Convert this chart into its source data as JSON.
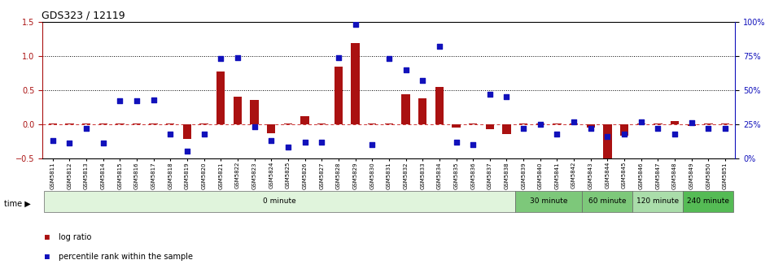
{
  "title": "GDS323 / 12119",
  "samples": [
    "GSM5811",
    "GSM5812",
    "GSM5813",
    "GSM5814",
    "GSM5815",
    "GSM5816",
    "GSM5817",
    "GSM5818",
    "GSM5819",
    "GSM5820",
    "GSM5821",
    "GSM5822",
    "GSM5823",
    "GSM5824",
    "GSM5825",
    "GSM5826",
    "GSM5827",
    "GSM5828",
    "GSM5829",
    "GSM5830",
    "GSM5831",
    "GSM5832",
    "GSM5833",
    "GSM5834",
    "GSM5835",
    "GSM5836",
    "GSM5837",
    "GSM5838",
    "GSM5839",
    "GSM5840",
    "GSM5841",
    "GSM5842",
    "GSM5843",
    "GSM5844",
    "GSM5845",
    "GSM5846",
    "GSM5847",
    "GSM5848",
    "GSM5849",
    "GSM5850",
    "GSM5851"
  ],
  "log_ratio": [
    0.01,
    0.01,
    0.01,
    0.01,
    0.01,
    0.01,
    0.01,
    0.01,
    -0.22,
    0.01,
    0.77,
    0.4,
    0.36,
    -0.13,
    0.01,
    0.12,
    0.01,
    0.84,
    1.19,
    0.01,
    0.01,
    0.44,
    0.38,
    0.55,
    -0.05,
    0.01,
    -0.07,
    -0.14,
    0.01,
    0.01,
    0.01,
    0.01,
    -0.05,
    -0.55,
    -0.17,
    0.01,
    0.01,
    0.05,
    -0.03,
    0.01,
    0.01
  ],
  "percentile": [
    13,
    11,
    22,
    11,
    42,
    42,
    43,
    18,
    5,
    18,
    73,
    74,
    23,
    13,
    8,
    12,
    12,
    74,
    98,
    10,
    73,
    65,
    57,
    82,
    12,
    10,
    47,
    45,
    22,
    25,
    18,
    27,
    22,
    16,
    18,
    27,
    22,
    18,
    26,
    22,
    22
  ],
  "ylim_left": [
    -0.5,
    1.5
  ],
  "ylim_right": [
    0,
    100
  ],
  "yticks_left": [
    -0.5,
    0.0,
    0.5,
    1.0,
    1.5
  ],
  "yticks_right": [
    0,
    25,
    50,
    75,
    100
  ],
  "bar_color": "#aa1111",
  "scatter_color": "#1111bb",
  "dashed_color": "#cc3333",
  "time_groups": [
    {
      "label": "0 minute",
      "start": 0,
      "end": 28,
      "color": "#e0f4dc"
    },
    {
      "label": "30 minute",
      "start": 28,
      "end": 32,
      "color": "#7dc87a"
    },
    {
      "label": "60 minute",
      "start": 32,
      "end": 35,
      "color": "#7dc87a"
    },
    {
      "label": "120 minute",
      "start": 35,
      "end": 38,
      "color": "#aaddaa"
    },
    {
      "label": "240 minute",
      "start": 38,
      "end": 41,
      "color": "#55bb55"
    }
  ],
  "legend_log_ratio": "log ratio",
  "legend_percentile": "percentile rank within the sample",
  "background_color": "#ffffff",
  "title_fontsize": 9,
  "bar_width": 0.5,
  "scatter_size": 18
}
